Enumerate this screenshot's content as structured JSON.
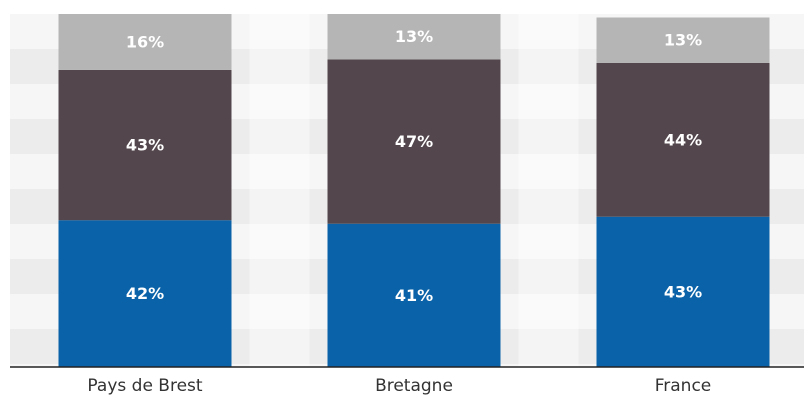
{
  "chart_data": {
    "type": "bar",
    "stacked": true,
    "categories": [
      "Pays de Brest",
      "Bretagne",
      "France"
    ],
    "series": [
      {
        "values": [
          42,
          41,
          43
        ],
        "labels": [
          "42%",
          "41%",
          "43%"
        ],
        "color": "#0a63a8",
        "label_color": "#ffffff"
      },
      {
        "values": [
          43,
          47,
          44
        ],
        "labels": [
          "43%",
          "47%",
          "44%"
        ],
        "color": "#53474d",
        "label_color": "#ffffff"
      },
      {
        "values": [
          16,
          13,
          13
        ],
        "labels": [
          "16%",
          "13%",
          "13%"
        ],
        "color": "#b5b5b5",
        "label_color": "#ffffff"
      }
    ],
    "ylim": [
      0,
      101
    ],
    "grid": true,
    "legend": false
  }
}
